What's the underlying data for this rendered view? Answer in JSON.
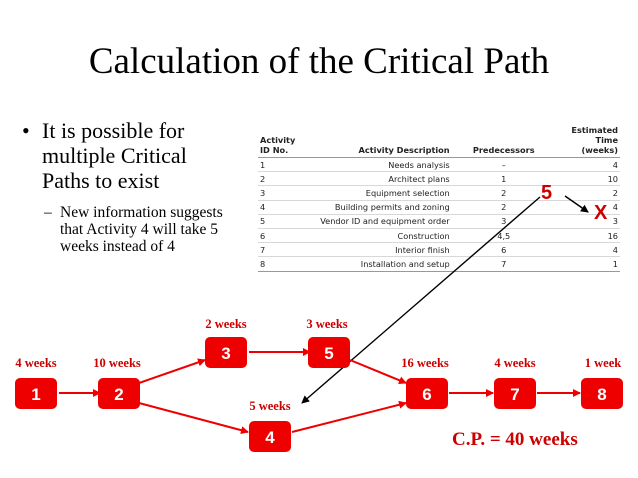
{
  "title": "Calculation of the Critical Path",
  "bullet": {
    "text": "It is possible for multiple Critical Paths to exist",
    "sub": "New information suggests that Activity 4 will take 5 weeks instead of 4"
  },
  "table": {
    "headers": [
      "Activity ID No.",
      "Activity Description",
      "Predecessors",
      "Estimated Time (weeks)"
    ],
    "rows": [
      [
        "1",
        "Needs analysis",
        "–",
        "4"
      ],
      [
        "2",
        "Architect plans",
        "1",
        "10"
      ],
      [
        "3",
        "Equipment selection",
        "2",
        "2"
      ],
      [
        "4",
        "Building permits and zoning",
        "2",
        "4"
      ],
      [
        "5",
        "Vendor ID and equipment order",
        "3",
        "3"
      ],
      [
        "6",
        "Construction",
        "4,5",
        "16"
      ],
      [
        "7",
        "Interior finish",
        "6",
        "4"
      ],
      [
        "8",
        "Installation and setup",
        "7",
        "1"
      ]
    ]
  },
  "annotation": {
    "new_value": "5",
    "strike": "X"
  },
  "network": {
    "nodes": [
      {
        "id": "1",
        "duration": "4 weeks"
      },
      {
        "id": "2",
        "duration": "10 weeks"
      },
      {
        "id": "3",
        "duration": "2 weeks"
      },
      {
        "id": "5",
        "duration": "3 weeks"
      },
      {
        "id": "4",
        "duration": "5 weeks"
      },
      {
        "id": "6",
        "duration": "16 weeks"
      },
      {
        "id": "7",
        "duration": "4 weeks"
      },
      {
        "id": "8",
        "duration": "1 week"
      }
    ],
    "critical_path": "C.P. = 40 weeks"
  },
  "colors": {
    "accent": "#cc0000",
    "node_fill": "#ee0000"
  }
}
